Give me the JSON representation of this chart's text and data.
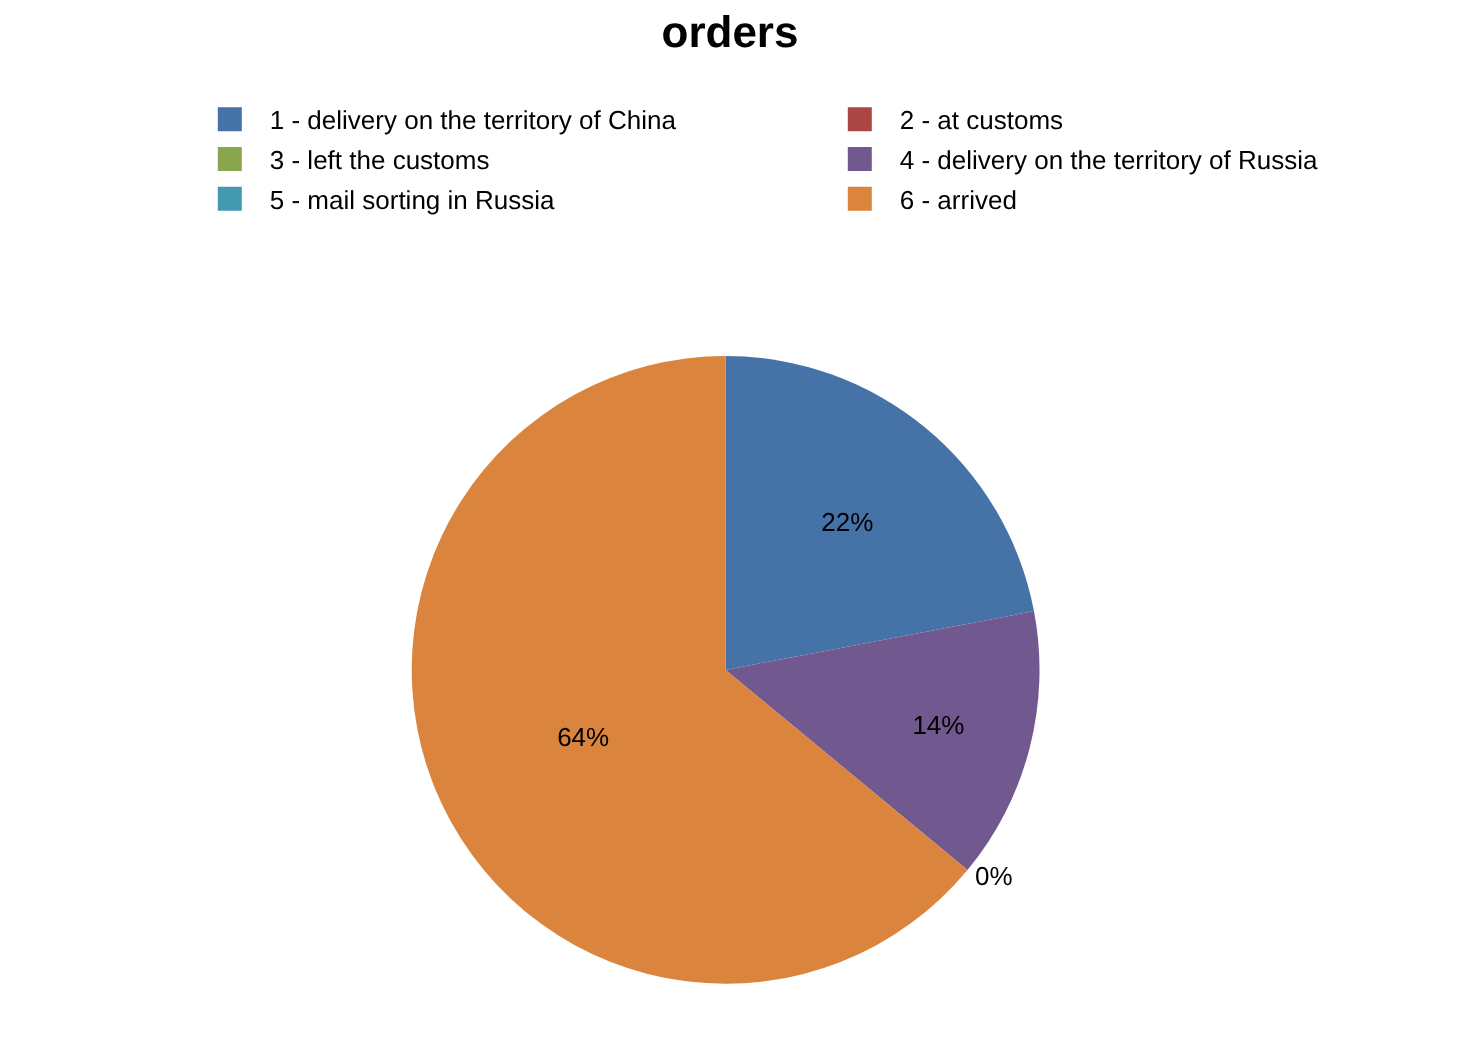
{
  "chart_data": {
    "type": "pie",
    "title": "orders",
    "categories": [
      "1 - delivery on the territory of China",
      "2 - at customs",
      "3 - left the customs",
      "4 - delivery on the territory of Russia",
      "5 - mail sorting in Russia",
      "6 - arrived"
    ],
    "values": [
      22,
      0,
      0,
      14,
      0,
      64
    ],
    "value_labels": [
      "22%",
      null,
      null,
      "14%",
      "0%",
      "64%"
    ],
    "colors": [
      "#4572a7",
      "#aa4643",
      "#89a54e",
      "#71588f",
      "#4198af",
      "#db843d"
    ],
    "legend": "top"
  }
}
